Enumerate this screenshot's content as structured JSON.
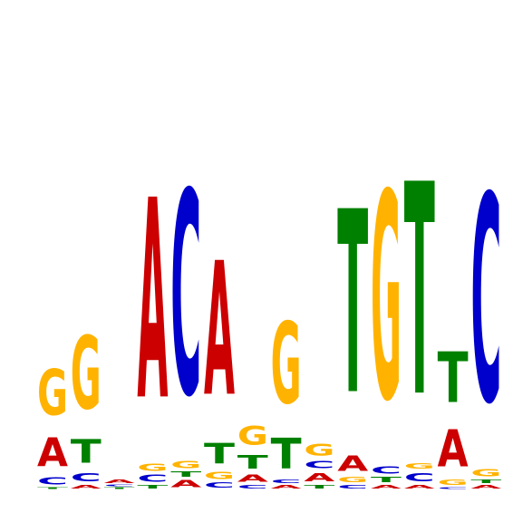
{
  "chart_data": {
    "type": "sequence-logo",
    "title": "",
    "xlabel": "",
    "ylabel": "",
    "ylim": [
      0,
      2
    ],
    "colors": {
      "A": "#cc0000",
      "C": "#0000cc",
      "G": "#ffb300",
      "T": "#008000"
    },
    "positions": [
      {
        "letters": [
          {
            "base": "T",
            "h": 0.01
          },
          {
            "base": "C",
            "h": 0.04
          },
          {
            "base": "A",
            "h": 0.17
          },
          {
            "base": "G",
            "h": 0.27
          }
        ]
      },
      {
        "letters": [
          {
            "base": "A",
            "h": 0.02
          },
          {
            "base": "C",
            "h": 0.05
          },
          {
            "base": "T",
            "h": 0.14
          },
          {
            "base": "G",
            "h": 0.43
          }
        ]
      },
      {
        "letters": [
          {
            "base": "T",
            "h": 0.01
          },
          {
            "base": "C",
            "h": 0.01
          },
          {
            "base": "A",
            "h": 0.02
          }
        ]
      },
      {
        "letters": [
          {
            "base": "T",
            "h": 0.02
          },
          {
            "base": "C",
            "h": 0.04
          },
          {
            "base": "G",
            "h": 0.04
          },
          {
            "base": "A",
            "h": 1.18
          }
        ]
      },
      {
        "letters": [
          {
            "base": "A",
            "h": 0.04
          },
          {
            "base": "T",
            "h": 0.03
          },
          {
            "base": "G",
            "h": 0.04
          },
          {
            "base": "C",
            "h": 1.2
          }
        ]
      },
      {
        "letters": [
          {
            "base": "C",
            "h": 0.03
          },
          {
            "base": "G",
            "h": 0.04
          },
          {
            "base": "T",
            "h": 0.12
          },
          {
            "base": "A",
            "h": 0.79
          }
        ]
      },
      {
        "letters": [
          {
            "base": "C",
            "h": 0.02
          },
          {
            "base": "A",
            "h": 0.04
          },
          {
            "base": "T",
            "h": 0.08
          },
          {
            "base": "G",
            "h": 0.11
          }
        ]
      },
      {
        "letters": [
          {
            "base": "A",
            "h": 0.02
          },
          {
            "base": "C",
            "h": 0.02
          },
          {
            "base": "T",
            "h": 0.18
          },
          {
            "base": "G",
            "h": 0.48
          }
        ]
      },
      {
        "letters": [
          {
            "base": "T",
            "h": 0.02
          },
          {
            "base": "A",
            "h": 0.05
          },
          {
            "base": "C",
            "h": 0.04
          },
          {
            "base": "G",
            "h": 0.07
          }
        ]
      },
      {
        "letters": [
          {
            "base": "C",
            "h": 0.02
          },
          {
            "base": "G",
            "h": 0.03
          },
          {
            "base": "A",
            "h": 0.09
          },
          {
            "base": "T",
            "h": 1.08
          }
        ]
      },
      {
        "letters": [
          {
            "base": "A",
            "h": 0.02
          },
          {
            "base": "T",
            "h": 0.03
          },
          {
            "base": "C",
            "h": 0.04
          },
          {
            "base": "G",
            "h": 1.22
          }
        ]
      },
      {
        "letters": [
          {
            "base": "A",
            "h": 0.02
          },
          {
            "base": "C",
            "h": 0.05
          },
          {
            "base": "G",
            "h": 0.03
          },
          {
            "base": "T",
            "h": 1.25
          }
        ]
      },
      {
        "letters": [
          {
            "base": "C",
            "h": 0.01
          },
          {
            "base": "G",
            "h": 0.03
          },
          {
            "base": "A",
            "h": 0.22
          },
          {
            "base": "T",
            "h": 0.3
          }
        ]
      },
      {
        "letters": [
          {
            "base": "A",
            "h": 0.02
          },
          {
            "base": "T",
            "h": 0.02
          },
          {
            "base": "G",
            "h": 0.04
          },
          {
            "base": "C",
            "h": 1.22
          }
        ]
      }
    ]
  }
}
